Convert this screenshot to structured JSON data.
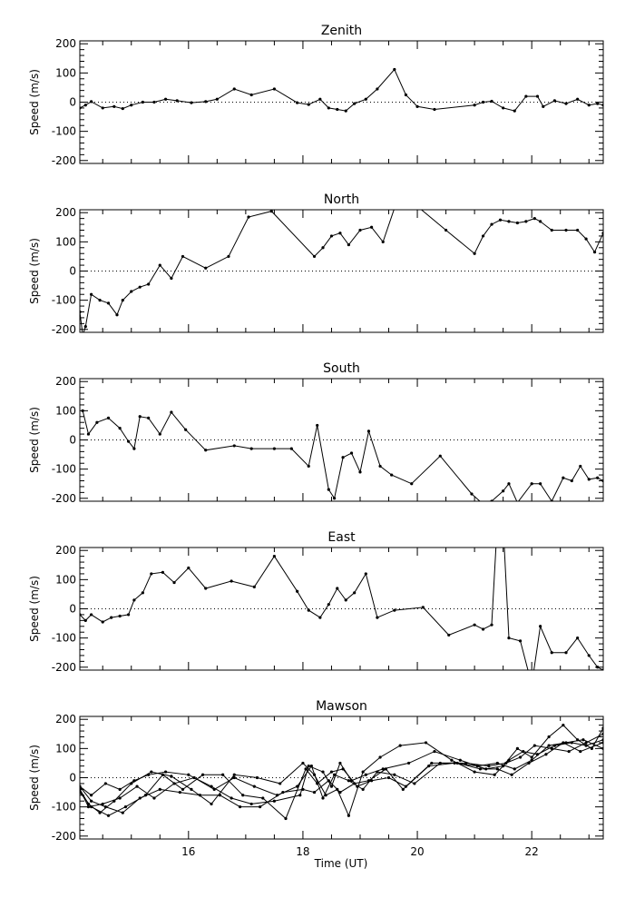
{
  "chart_data": {
    "type": "line",
    "x_axis": {
      "label": "Time (UT)",
      "range": [
        14.1,
        23.25
      ],
      "ticks": [
        16,
        18,
        20,
        22
      ],
      "tick_labels": [
        "16",
        "18",
        "20",
        "22"
      ]
    },
    "y_axis": {
      "label": "Speed (m/s)",
      "range": [
        -210,
        210
      ],
      "ticks": [
        200,
        100,
        0,
        -100,
        -200
      ],
      "tick_labels": [
        "200",
        "100",
        "0",
        "-100",
        "-200"
      ]
    },
    "zero_line": "dotted",
    "panels": [
      {
        "title": "Zenith",
        "series": [
          {
            "x": [
              14.1,
              14.2,
              14.3,
              14.5,
              14.7,
              14.85,
              15.0,
              15.2,
              15.4,
              15.6,
              15.8,
              16.05,
              16.3,
              16.5,
              16.8,
              17.1,
              17.5,
              17.9,
              18.1,
              18.3,
              18.45,
              18.6,
              18.75,
              18.9,
              19.1,
              19.3,
              19.6,
              19.8,
              20.0,
              20.3,
              21.0,
              21.15,
              21.3,
              21.5,
              21.7,
              21.9,
              22.1,
              22.2,
              22.4,
              22.6,
              22.8,
              23.0,
              23.15,
              23.25
            ],
            "y": [
              -20,
              -10,
              2,
              -20,
              -15,
              -22,
              -10,
              0,
              0,
              10,
              5,
              -2,
              2,
              10,
              45,
              25,
              45,
              -2,
              -8,
              10,
              -20,
              -25,
              -30,
              -5,
              10,
              45,
              112,
              25,
              -15,
              -25,
              -10,
              0,
              3,
              -20,
              -30,
              20,
              20,
              -15,
              5,
              -5,
              10,
              -10,
              -5,
              -10
            ]
          }
        ]
      },
      {
        "title": "North",
        "series": [
          {
            "x": [
              14.1,
              14.15,
              14.2,
              14.3,
              14.45,
              14.6,
              14.75,
              14.85,
              15.0,
              15.15,
              15.3,
              15.5,
              15.7,
              15.9,
              16.3,
              16.7,
              17.05,
              17.45,
              18.2,
              18.35,
              18.5,
              18.65,
              18.8,
              19.0,
              19.2,
              19.4,
              19.6,
              19.95,
              20.5,
              21.0,
              21.15,
              21.3,
              21.45,
              21.6,
              21.75,
              21.9,
              22.05,
              22.15,
              22.35,
              22.6,
              22.8,
              22.95,
              23.1,
              23.25
            ],
            "y": [
              -140,
              -220,
              -190,
              -80,
              -100,
              -110,
              -150,
              -100,
              -70,
              -55,
              -45,
              20,
              -25,
              50,
              10,
              50,
              185,
              205,
              50,
              80,
              120,
              130,
              90,
              140,
              150,
              100,
              215,
              230,
              140,
              60,
              120,
              160,
              175,
              170,
              165,
              170,
              180,
              170,
              140,
              140,
              140,
              110,
              65,
              130
            ]
          }
        ]
      },
      {
        "title": "South",
        "series": [
          {
            "x": [
              14.15,
              14.25,
              14.4,
              14.6,
              14.8,
              14.95,
              15.05,
              15.15,
              15.3,
              15.5,
              15.7,
              15.95,
              16.3,
              16.8,
              17.1,
              17.5,
              17.8,
              18.1,
              18.25,
              18.45,
              18.55,
              18.7,
              18.85,
              19.0,
              19.15,
              19.35,
              19.55,
              19.9,
              20.4,
              20.95,
              21.15,
              21.3,
              21.5,
              21.6,
              21.75,
              22.0,
              22.15,
              22.35,
              22.55,
              22.7,
              22.85,
              23.0,
              23.15,
              23.25
            ],
            "y": [
              100,
              20,
              60,
              75,
              40,
              -5,
              -30,
              80,
              75,
              20,
              95,
              35,
              -35,
              -20,
              -30,
              -30,
              -30,
              -90,
              50,
              -170,
              -200,
              -60,
              -45,
              -110,
              30,
              -90,
              -120,
              -150,
              -55,
              -185,
              -220,
              -210,
              -175,
              -150,
              -215,
              -150,
              -150,
              -210,
              -130,
              -140,
              -90,
              -135,
              -130,
              -140
            ]
          }
        ]
      },
      {
        "title": "East",
        "series": [
          {
            "x": [
              14.1,
              14.2,
              14.3,
              14.5,
              14.65,
              14.8,
              14.95,
              15.05,
              15.2,
              15.35,
              15.55,
              15.75,
              16.0,
              16.3,
              16.75,
              17.15,
              17.5,
              17.9,
              18.1,
              18.3,
              18.45,
              18.6,
              18.75,
              18.9,
              19.1,
              19.3,
              19.6,
              20.1,
              20.55,
              21.0,
              21.15,
              21.3,
              21.45,
              21.6,
              21.8,
              22.0,
              22.15,
              22.35,
              22.6,
              22.8,
              23.0,
              23.15,
              23.25
            ],
            "y": [
              -20,
              -40,
              -20,
              -45,
              -30,
              -25,
              -20,
              30,
              55,
              120,
              125,
              90,
              140,
              70,
              95,
              75,
              180,
              60,
              -5,
              -30,
              15,
              70,
              30,
              55,
              120,
              -30,
              -5,
              5,
              -90,
              -55,
              -70,
              -55,
              480,
              -100,
              -110,
              -260,
              -60,
              -150,
              -150,
              -100,
              -160,
              -200,
              -210
            ]
          }
        ]
      },
      {
        "title": "Mawson",
        "series": [
          {
            "x": [
              14.1,
              14.3,
              14.55,
              14.8,
              15.05,
              15.3,
              15.6,
              16.0,
              16.4,
              16.75,
              17.1,
              17.5,
              17.95,
              18.1,
              18.35,
              18.5,
              18.65,
              18.85,
              19.1,
              19.4,
              19.85,
              20.3,
              20.75,
              21.2,
              21.5,
              21.75,
              22.0,
              22.3,
              22.55,
              22.8,
              23.05,
              23.25
            ],
            "y": [
              -30,
              -60,
              -20,
              -40,
              -10,
              10,
              20,
              10,
              -30,
              -70,
              -90,
              -80,
              -60,
              40,
              20,
              -30,
              50,
              -10,
              10,
              30,
              50,
              90,
              60,
              30,
              40,
              100,
              70,
              140,
              180,
              130,
              100,
              170
            ]
          },
          {
            "x": [
              14.1,
              14.25,
              14.45,
              14.7,
              15.0,
              15.35,
              15.7,
              16.05,
              16.4,
              16.8,
              17.2,
              17.6,
              18.0,
              18.2,
              18.4,
              18.6,
              18.8,
              19.05,
              19.35,
              19.7,
              20.15,
              20.6,
              21.0,
              21.35,
              21.6,
              21.85,
              22.1,
              22.4,
              22.7,
              22.95,
              23.25
            ],
            "y": [
              -40,
              -90,
              -120,
              -80,
              -20,
              20,
              5,
              -40,
              -90,
              10,
              0,
              -20,
              50,
              10,
              -60,
              -40,
              -130,
              20,
              70,
              110,
              120,
              60,
              20,
              10,
              60,
              90,
              80,
              110,
              120,
              110,
              130
            ]
          },
          {
            "x": [
              14.1,
              14.3,
              14.6,
              14.9,
              15.25,
              15.55,
              15.9,
              16.25,
              16.6,
              16.95,
              17.3,
              17.7,
              18.05,
              18.25,
              18.5,
              18.7,
              18.95,
              19.2,
              19.5,
              19.8,
              20.25,
              20.7,
              21.1,
              21.4,
              21.65,
              21.95,
              22.25,
              22.55,
              22.85,
              23.25
            ],
            "y": [
              -50,
              -100,
              -130,
              -100,
              -60,
              10,
              -40,
              10,
              10,
              -60,
              -70,
              -140,
              30,
              -20,
              20,
              30,
              -30,
              -10,
              0,
              -30,
              50,
              50,
              30,
              30,
              10,
              50,
              80,
              120,
              90,
              120
            ]
          },
          {
            "x": [
              14.1,
              14.3,
              14.55,
              14.85,
              15.15,
              15.5,
              15.85,
              16.2,
              16.55,
              16.9,
              17.25,
              17.65,
              18.0,
              18.2,
              18.45,
              18.65,
              18.9,
              19.15,
              19.45,
              19.75,
              20.2,
              20.65,
              21.05,
              21.4,
              21.7,
              22.0,
              22.3,
              22.6,
              22.9,
              23.25
            ],
            "y": [
              -30,
              -80,
              -100,
              -120,
              -70,
              -40,
              -50,
              -60,
              -60,
              -100,
              -100,
              -50,
              -40,
              -50,
              -10,
              -50,
              -20,
              -10,
              30,
              -40,
              40,
              50,
              40,
              50,
              30,
              60,
              110,
              120,
              130,
              100
            ]
          },
          {
            "x": [
              14.1,
              14.25,
              14.5,
              14.8,
              15.1,
              15.4,
              15.75,
              16.1,
              16.45,
              16.8,
              17.15,
              17.55,
              17.9,
              18.15,
              18.35,
              18.55,
              18.8,
              19.05,
              19.3,
              19.6,
              19.95,
              20.4,
              20.85,
              21.25,
              21.55,
              21.8,
              22.05,
              22.35,
              22.65,
              22.95,
              23.25
            ],
            "y": [
              -40,
              -100,
              -90,
              -70,
              -30,
              -70,
              -20,
              0,
              -40,
              0,
              -30,
              -60,
              -30,
              40,
              -70,
              10,
              -10,
              -40,
              20,
              10,
              -20,
              50,
              50,
              40,
              50,
              70,
              110,
              100,
              90,
              120,
              150
            ]
          }
        ]
      }
    ]
  }
}
